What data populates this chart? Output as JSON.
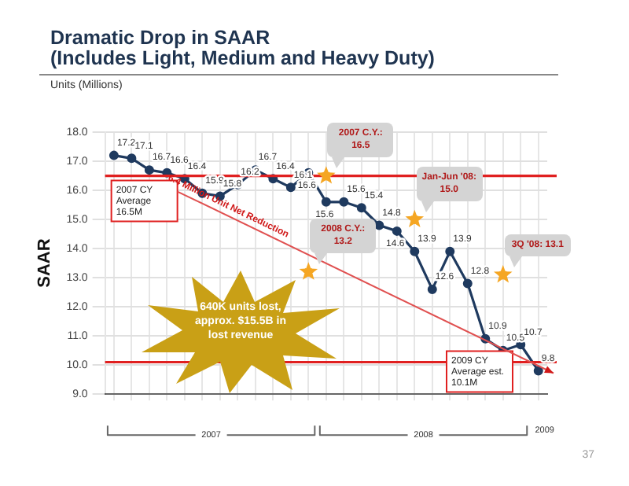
{
  "chart_data": {
    "type": "line",
    "title": "Dramatic Drop in SAAR\n(Includes Light, Medium and Heavy Duty)",
    "subtitle": "Units (Millions)",
    "ylabel": "SAAR",
    "categories": [
      null,
      null,
      null,
      null,
      null,
      null,
      null,
      null,
      null,
      null,
      null,
      null,
      null,
      null,
      null,
      null,
      null,
      null,
      null,
      null,
      null,
      null,
      null,
      null,
      null
    ],
    "series": [
      {
        "color": "#1f3a5f",
        "values": [
          17.2,
          17.1,
          16.7,
          16.6,
          16.4,
          15.9,
          15.8,
          16.2,
          16.7,
          16.4,
          16.1,
          16.6,
          15.6,
          15.6,
          15.4,
          14.8,
          14.6,
          13.9,
          12.6,
          13.9,
          12.8,
          10.9,
          10.5,
          10.7,
          9.8
        ],
        "value_labels": [
          "17.2",
          "17.1",
          "16.7",
          "16.6",
          "16.4",
          "15.9",
          "15.8",
          "16.2",
          "16.7",
          "16.4",
          "16.1",
          "16.6",
          "15.6",
          "15.6",
          "15.4",
          "14.8",
          "14.6",
          "13.9",
          "12.6",
          "13.9",
          "12.8",
          "10.9",
          "10.5",
          "10.7",
          "9.8"
        ]
      },
      {
        "type": "scatter",
        "marker": "star",
        "color": "#f5a623",
        "values": [
          null,
          null,
          null,
          null,
          null,
          null,
          null,
          null,
          null,
          null,
          null,
          13.2,
          16.5,
          null,
          null,
          null,
          null,
          15.0,
          null,
          null,
          null,
          null,
          13.1,
          null,
          null
        ],
        "value_labels": [
          null,
          null,
          null,
          null,
          null,
          null,
          null,
          null,
          null,
          null,
          null,
          "2008 C.Y.: 13.2",
          "2007 C.Y.: 16.5",
          null,
          null,
          null,
          null,
          "Jan-Jun '08: 15.0",
          null,
          null,
          null,
          null,
          "3Q '08: 13.1",
          null,
          null
        ]
      }
    ],
    "ylim": [
      9,
      18
    ],
    "yticks": [
      {
        "value": 9,
        "label": "9.0"
      },
      {
        "value": 10,
        "label": "10.0"
      },
      {
        "value": 11,
        "label": "11.0"
      },
      {
        "value": 12,
        "label": "12.0"
      },
      {
        "value": 13,
        "label": "13.0"
      },
      {
        "value": 14,
        "label": "14.0"
      },
      {
        "value": 15,
        "label": "15.0"
      },
      {
        "value": 16,
        "label": "16.0"
      },
      {
        "value": 17,
        "label": "17.0"
      },
      {
        "value": 18,
        "label": "18.0"
      }
    ],
    "ref_lines": [
      {
        "axis": "y",
        "value": 16.5,
        "label": "2007 CY Average 16.5M",
        "color": "#e02020"
      },
      {
        "axis": "y",
        "value": 10.1,
        "label": "2009 CY Average est. 10.1M",
        "color": "#e02020"
      }
    ],
    "annotations": [
      "6.4 Million Unit Net Reduction",
      "640K units lost, approx. $15.5B in lost revenue",
      "2007",
      "2008",
      "2009",
      "37"
    ],
    "grid": true,
    "marker": "circle",
    "line_style": "solid",
    "legend": false
  }
}
